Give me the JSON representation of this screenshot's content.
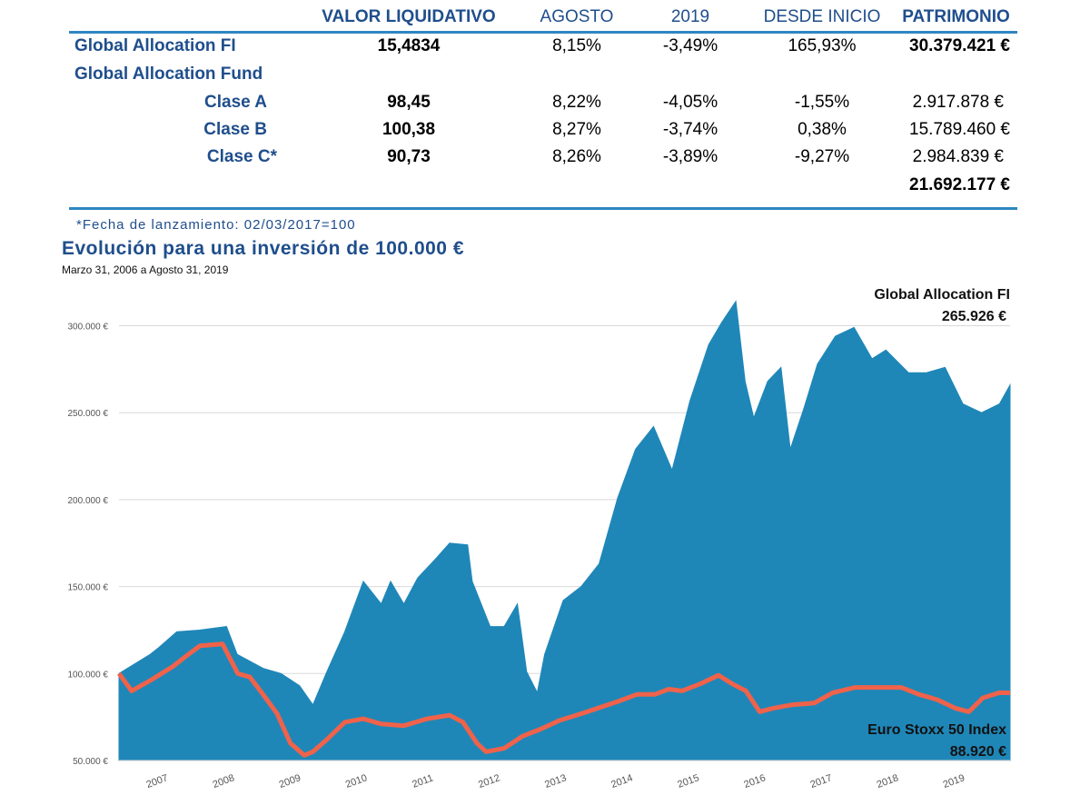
{
  "table": {
    "headers": {
      "valor": "VALOR LIQUIDATIVO",
      "agosto": "AGOSTO",
      "ytd": "2019",
      "inicio": "DESDE INICIO",
      "patrimonio": "PATRIMONIO"
    },
    "rows": [
      {
        "name": "Global Allocation FI",
        "valor": "15,4834",
        "agosto": "8,15%",
        "ytd": "-3,49%",
        "inicio": "165,93%",
        "patrimonio": "30.379.421 €"
      },
      {
        "name": "Global Allocation Fund",
        "valor": "",
        "agosto": "",
        "ytd": "",
        "inicio": "",
        "patrimonio": ""
      },
      {
        "name": "Clase A",
        "valor": "98,45",
        "agosto": "8,22%",
        "ytd": "-4,05%",
        "inicio": "-1,55%",
        "patrimonio": "2.917.878 €"
      },
      {
        "name": "Clase B",
        "valor": "100,38",
        "agosto": "8,27%",
        "ytd": "-3,74%",
        "inicio": "0,38%",
        "patrimonio": "15.789.460 €"
      },
      {
        "name": "Clase C*",
        "valor": "90,73",
        "agosto": "8,26%",
        "ytd": "-3,89%",
        "inicio": "-9,27%",
        "patrimonio": "2.984.839 €"
      }
    ],
    "total_patrimonio": "21.692.177 €"
  },
  "footnote": "*Fecha de lanzamiento: 02/03/2017=100",
  "colors": {
    "accent": "#1f4e8c",
    "rule": "#2e86c1",
    "fund_area": "#1f87b8",
    "index_line": "#f0624a"
  },
  "chart_data": {
    "type": "area",
    "title": "Evolución para una inversión de 100.000 €",
    "subtitle": "Marzo 31, 2006 a Agosto 31, 2019",
    "xlabel": "",
    "ylabel": "",
    "xlim": [
      2006.25,
      2019.67
    ],
    "ylim": [
      50000,
      310000
    ],
    "yticks": [
      50000,
      100000,
      150000,
      200000,
      250000,
      300000
    ],
    "ytick_labels": [
      "50.000 €",
      "100.000 €",
      "150.000 €",
      "200.000 €",
      "250.000 €",
      "300.000 €"
    ],
    "xtick_labels": [
      "2007",
      "2008",
      "2009",
      "2010",
      "2011",
      "2012",
      "2013",
      "2014",
      "2015",
      "2016",
      "2017",
      "2018",
      "2019"
    ],
    "grid": true,
    "series": [
      {
        "name": "Global Allocation FI",
        "end_label": "265.926 €",
        "style": "area",
        "points": [
          [
            2006.25,
            100000
          ],
          [
            2006.72,
            111000
          ],
          [
            2006.85,
            115000
          ],
          [
            2007.12,
            124000
          ],
          [
            2007.46,
            125000
          ],
          [
            2007.87,
            127000
          ],
          [
            2008.03,
            111000
          ],
          [
            2008.42,
            103000
          ],
          [
            2008.69,
            100000
          ],
          [
            2008.97,
            93000
          ],
          [
            2009.17,
            82000
          ],
          [
            2009.38,
            101000
          ],
          [
            2009.65,
            124000
          ],
          [
            2009.93,
            153000
          ],
          [
            2010.2,
            140000
          ],
          [
            2010.34,
            153000
          ],
          [
            2010.54,
            140000
          ],
          [
            2010.75,
            155000
          ],
          [
            2011.02,
            166000
          ],
          [
            2011.23,
            175000
          ],
          [
            2011.5,
            174000
          ],
          [
            2011.57,
            153000
          ],
          [
            2011.84,
            127000
          ],
          [
            2012.05,
            127000
          ],
          [
            2012.25,
            140000
          ],
          [
            2012.39,
            101000
          ],
          [
            2012.55,
            89000
          ],
          [
            2012.66,
            111000
          ],
          [
            2012.94,
            142000
          ],
          [
            2013.21,
            150000
          ],
          [
            2013.48,
            163000
          ],
          [
            2013.76,
            201000
          ],
          [
            2014.03,
            229000
          ],
          [
            2014.3,
            242000
          ],
          [
            2014.58,
            217000
          ],
          [
            2014.85,
            257000
          ],
          [
            2015.13,
            289000
          ],
          [
            2015.33,
            302000
          ],
          [
            2015.54,
            314000
          ],
          [
            2015.68,
            268000
          ],
          [
            2015.81,
            247000
          ],
          [
            2016.02,
            268000
          ],
          [
            2016.22,
            276000
          ],
          [
            2016.36,
            229000
          ],
          [
            2016.56,
            252000
          ],
          [
            2016.77,
            278000
          ],
          [
            2017.04,
            294000
          ],
          [
            2017.32,
            299000
          ],
          [
            2017.59,
            281000
          ],
          [
            2017.8,
            286000
          ],
          [
            2018.14,
            273000
          ],
          [
            2018.41,
            273000
          ],
          [
            2018.69,
            276000
          ],
          [
            2018.96,
            255000
          ],
          [
            2019.24,
            250000
          ],
          [
            2019.51,
            255000
          ],
          [
            2019.67,
            265926
          ]
        ]
      },
      {
        "name": "Euro Stoxx 50 Index",
        "end_label": "88.920 €",
        "style": "line",
        "points": [
          [
            2006.25,
            100000
          ],
          [
            2006.44,
            90000
          ],
          [
            2006.72,
            96000
          ],
          [
            2007.06,
            104000
          ],
          [
            2007.26,
            110000
          ],
          [
            2007.47,
            116000
          ],
          [
            2007.81,
            117000
          ],
          [
            2008.04,
            100000
          ],
          [
            2008.22,
            98000
          ],
          [
            2008.42,
            88000
          ],
          [
            2008.63,
            77000
          ],
          [
            2008.83,
            60000
          ],
          [
            2009.04,
            53000
          ],
          [
            2009.17,
            55000
          ],
          [
            2009.38,
            62000
          ],
          [
            2009.65,
            72000
          ],
          [
            2009.93,
            74000
          ],
          [
            2010.2,
            71000
          ],
          [
            2010.54,
            70000
          ],
          [
            2010.89,
            74000
          ],
          [
            2011.23,
            76000
          ],
          [
            2011.43,
            72000
          ],
          [
            2011.64,
            60000
          ],
          [
            2011.78,
            55000
          ],
          [
            2012.05,
            57000
          ],
          [
            2012.33,
            64000
          ],
          [
            2012.6,
            68000
          ],
          [
            2012.88,
            73000
          ],
          [
            2013.22,
            77000
          ],
          [
            2013.77,
            84000
          ],
          [
            2014.05,
            88000
          ],
          [
            2014.32,
            88000
          ],
          [
            2014.53,
            91000
          ],
          [
            2014.73,
            90000
          ],
          [
            2015.0,
            94000
          ],
          [
            2015.28,
            99000
          ],
          [
            2015.49,
            94000
          ],
          [
            2015.69,
            90000
          ],
          [
            2015.9,
            78000
          ],
          [
            2016.1,
            80000
          ],
          [
            2016.38,
            82000
          ],
          [
            2016.72,
            83000
          ],
          [
            2017.0,
            89000
          ],
          [
            2017.34,
            92000
          ],
          [
            2017.68,
            92000
          ],
          [
            2018.03,
            92000
          ],
          [
            2018.3,
            88000
          ],
          [
            2018.57,
            85000
          ],
          [
            2018.85,
            80000
          ],
          [
            2019.05,
            78000
          ],
          [
            2019.26,
            86000
          ],
          [
            2019.51,
            89000
          ],
          [
            2019.67,
            88920
          ]
        ]
      }
    ]
  }
}
